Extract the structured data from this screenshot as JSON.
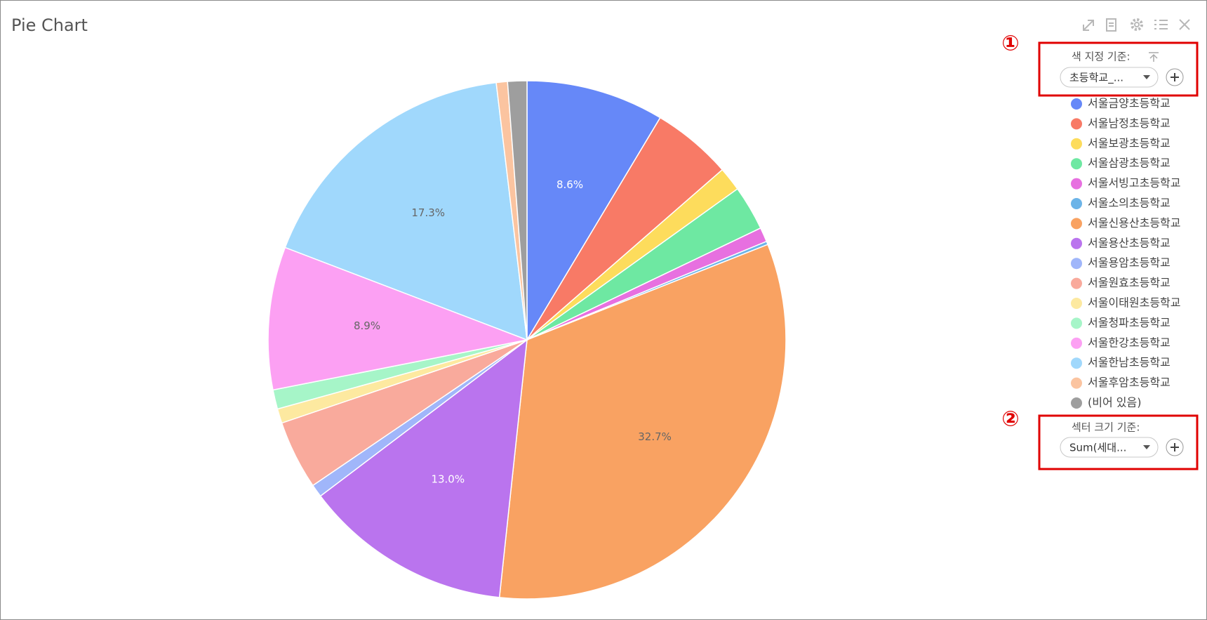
{
  "chart_data": {
    "type": "pie",
    "title": "Pie Chart",
    "categories": [
      "서울금양초등학교",
      "서울남정초등학교",
      "서울보광초등학교",
      "서울삼광초등학교",
      "서울서빙고초등학교",
      "서울소의초등학교",
      "서울신용산초등학교",
      "서울용산초등학교",
      "서울용암초등학교",
      "서울원효초등학교",
      "서울이태원초등학교",
      "서울청파초등학교",
      "서울한강초등학교",
      "서울한남초등학교",
      "서울후암초등학교",
      "(비어 있음)"
    ],
    "values": [
      8.6,
      5.0,
      1.5,
      2.8,
      0.9,
      0.2,
      32.7,
      13.0,
      0.8,
      4.3,
      0.9,
      1.2,
      8.9,
      17.3,
      0.7,
      1.2
    ],
    "value_labels": [
      "8.6%",
      null,
      null,
      null,
      null,
      null,
      "32.7%",
      "13.0%",
      null,
      null,
      null,
      null,
      "8.9%",
      "17.3%",
      null,
      null
    ],
    "colors": [
      "#6688f8",
      "#f87a66",
      "#fddc5c",
      "#6ee8a2",
      "#e770e0",
      "#6cb4e8",
      "#f9a262",
      "#ba74ee",
      "#a0b6fa",
      "#f9aa9c",
      "#fde9a0",
      "#a6f5c8",
      "#fca0f3",
      "#a0d8fc",
      "#fbc4a0",
      "#9e9e9e"
    ]
  },
  "panel": {
    "color_by": {
      "marker": "①",
      "label": "색 지정 기준:",
      "selection": "초등학교_..."
    },
    "size_by": {
      "marker": "②",
      "label": "섹터 크기 기준:",
      "selection": "Sum(세대..."
    }
  }
}
